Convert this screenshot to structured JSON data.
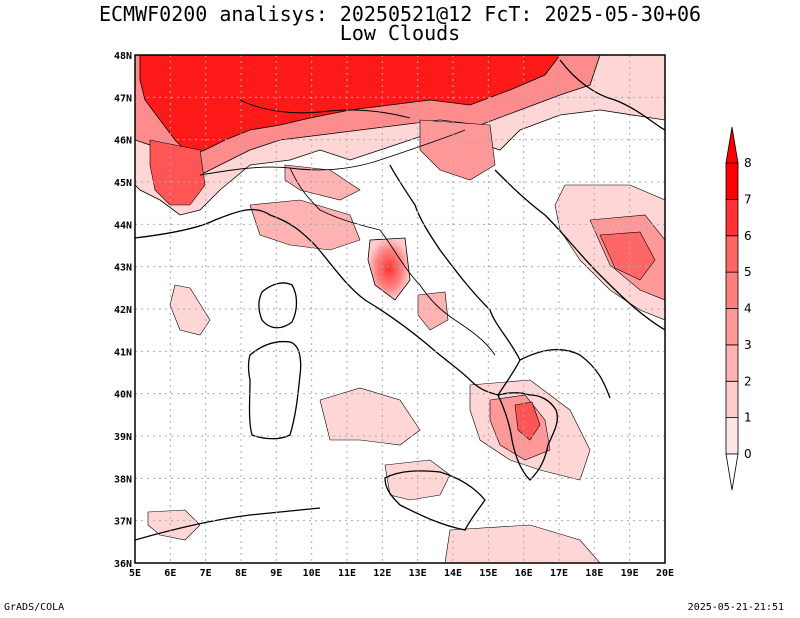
{
  "title": {
    "line1": "ECMWF0200 analisys: 20250521@12 FcT: 2025-05-30+06",
    "line2": "Low Clouds"
  },
  "map": {
    "lon_labels": [
      "5E",
      "6E",
      "7E",
      "8E",
      "9E",
      "10E",
      "11E",
      "12E",
      "13E",
      "14E",
      "15E",
      "16E",
      "17E",
      "18E",
      "19E",
      "20E"
    ],
    "lat_labels": [
      "36N",
      "37N",
      "38N",
      "39N",
      "40N",
      "41N",
      "42N",
      "43N",
      "44N",
      "45N",
      "46N",
      "47N",
      "48N"
    ],
    "grid": "dotted",
    "fill_colors": [
      "#ffe6e6",
      "#ffcccc",
      "#ffb3b3",
      "#ff9999",
      "#ff7f7f",
      "#ff6666",
      "#ff3333",
      "#ff0000"
    ]
  },
  "colorbar": {
    "labels": [
      "0",
      "1",
      "2",
      "3",
      "4",
      "5",
      "6",
      "7",
      "8"
    ],
    "colors": [
      "#ffffff",
      "#ffe6e6",
      "#ffcccc",
      "#ffb3b3",
      "#ff9999",
      "#ff7f7f",
      "#ff6666",
      "#ff3333",
      "#ff0000"
    ]
  },
  "footer": {
    "left": "GrADS/COLA",
    "right": "2025-05-21-21:51"
  }
}
